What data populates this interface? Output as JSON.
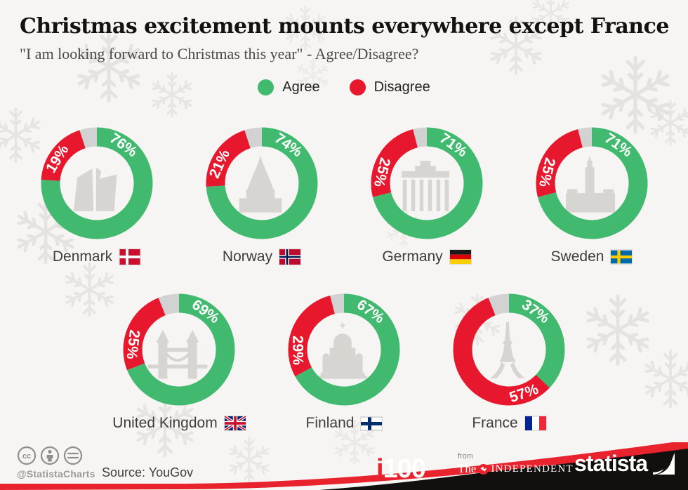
{
  "title": "Christmas excitement mounts everywhere except France",
  "subtitle": "\"I am looking forward to Christmas this year\" - Agree/Disagree?",
  "legend": {
    "agree_label": "Agree",
    "disagree_label": "Disagree"
  },
  "colors": {
    "agree": "#41ba70",
    "disagree": "#e7182d",
    "remainder": "#d2d2d2",
    "background": "#f7f5f3",
    "footer_black": "#12100e",
    "footer_red": "#e8232d"
  },
  "chart_data": {
    "type": "pie",
    "subtype": "donut-multiples",
    "question": "I am looking forward to Christmas this year",
    "unit": "%",
    "legend_position": "top-center",
    "series_names": [
      "Agree",
      "Disagree"
    ],
    "countries": [
      {
        "name": "Denmark",
        "agree": 76,
        "disagree": 19,
        "agree_label": "76%",
        "disagree_label": "19%"
      },
      {
        "name": "Norway",
        "agree": 74,
        "disagree": 21,
        "agree_label": "74%",
        "disagree_label": "21%"
      },
      {
        "name": "Germany",
        "agree": 71,
        "disagree": 25,
        "agree_label": "71%",
        "disagree_label": "25%"
      },
      {
        "name": "Sweden",
        "agree": 71,
        "disagree": 25,
        "agree_label": "71%",
        "disagree_label": "25%"
      },
      {
        "name": "United Kingdom",
        "agree": 69,
        "disagree": 25,
        "agree_label": "69%",
        "disagree_label": "25%"
      },
      {
        "name": "Finland",
        "agree": 67,
        "disagree": 29,
        "agree_label": "67%",
        "disagree_label": "29%"
      },
      {
        "name": "France",
        "agree": 37,
        "disagree": 57,
        "agree_label": "37%",
        "disagree_label": "57%"
      }
    ]
  },
  "footer": {
    "handle": "@StatistaCharts",
    "source": "Source: YouGov",
    "i100_i": "i",
    "i100_num": "100",
    "from_label": "from",
    "the_label": "The",
    "independent_label": "INDEPENDENT",
    "statista_label": "statista"
  }
}
